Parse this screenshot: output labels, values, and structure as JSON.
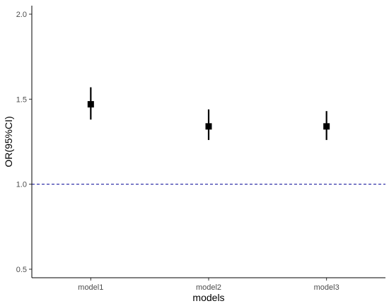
{
  "chart_data": {
    "type": "scatter",
    "title": "",
    "xlabel": "models",
    "ylabel": "OR(95%CI)",
    "categories": [
      "model1",
      "model2",
      "model3"
    ],
    "series": [
      {
        "values": [
          1.47,
          1.34,
          1.34
        ],
        "lower": [
          1.38,
          1.26,
          1.26
        ],
        "upper": [
          1.57,
          1.44,
          1.43
        ]
      }
    ],
    "ylim": [
      0.45,
      2.05
    ],
    "yticks": [
      0.5,
      1.0,
      1.5,
      2.0
    ],
    "ytick_labels": [
      "0.5",
      "1.0",
      "1.5",
      "2.0"
    ],
    "reference_line": {
      "y": 1.0,
      "style": "dashed",
      "color": "#3333aa"
    },
    "point_color": "#000000",
    "grid": false,
    "legend": "none"
  }
}
